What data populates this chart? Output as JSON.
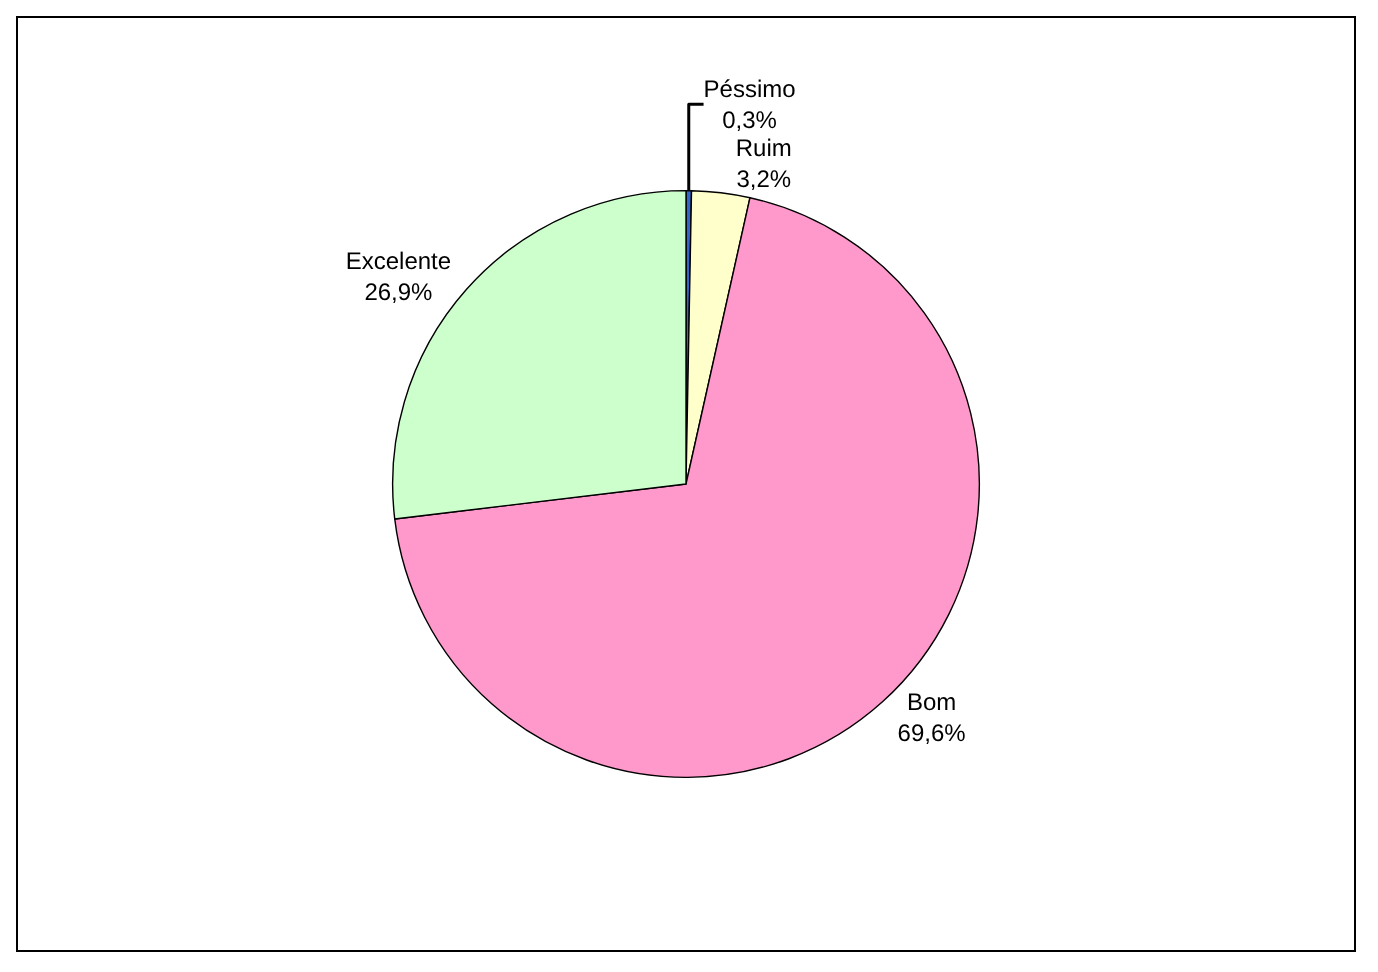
{
  "chart_data": {
    "type": "pie",
    "categories": [
      "Péssimo",
      "Ruim",
      "Bom",
      "Excelente"
    ],
    "values": [
      0.3,
      3.2,
      69.6,
      26.9
    ],
    "value_labels": [
      "0,3%",
      "3,2%",
      "69,6%",
      "26,9%"
    ],
    "colors": [
      "#3366cc",
      "#ffffcc",
      "#ff99cc",
      "#ccffcc"
    ],
    "legend": false
  }
}
